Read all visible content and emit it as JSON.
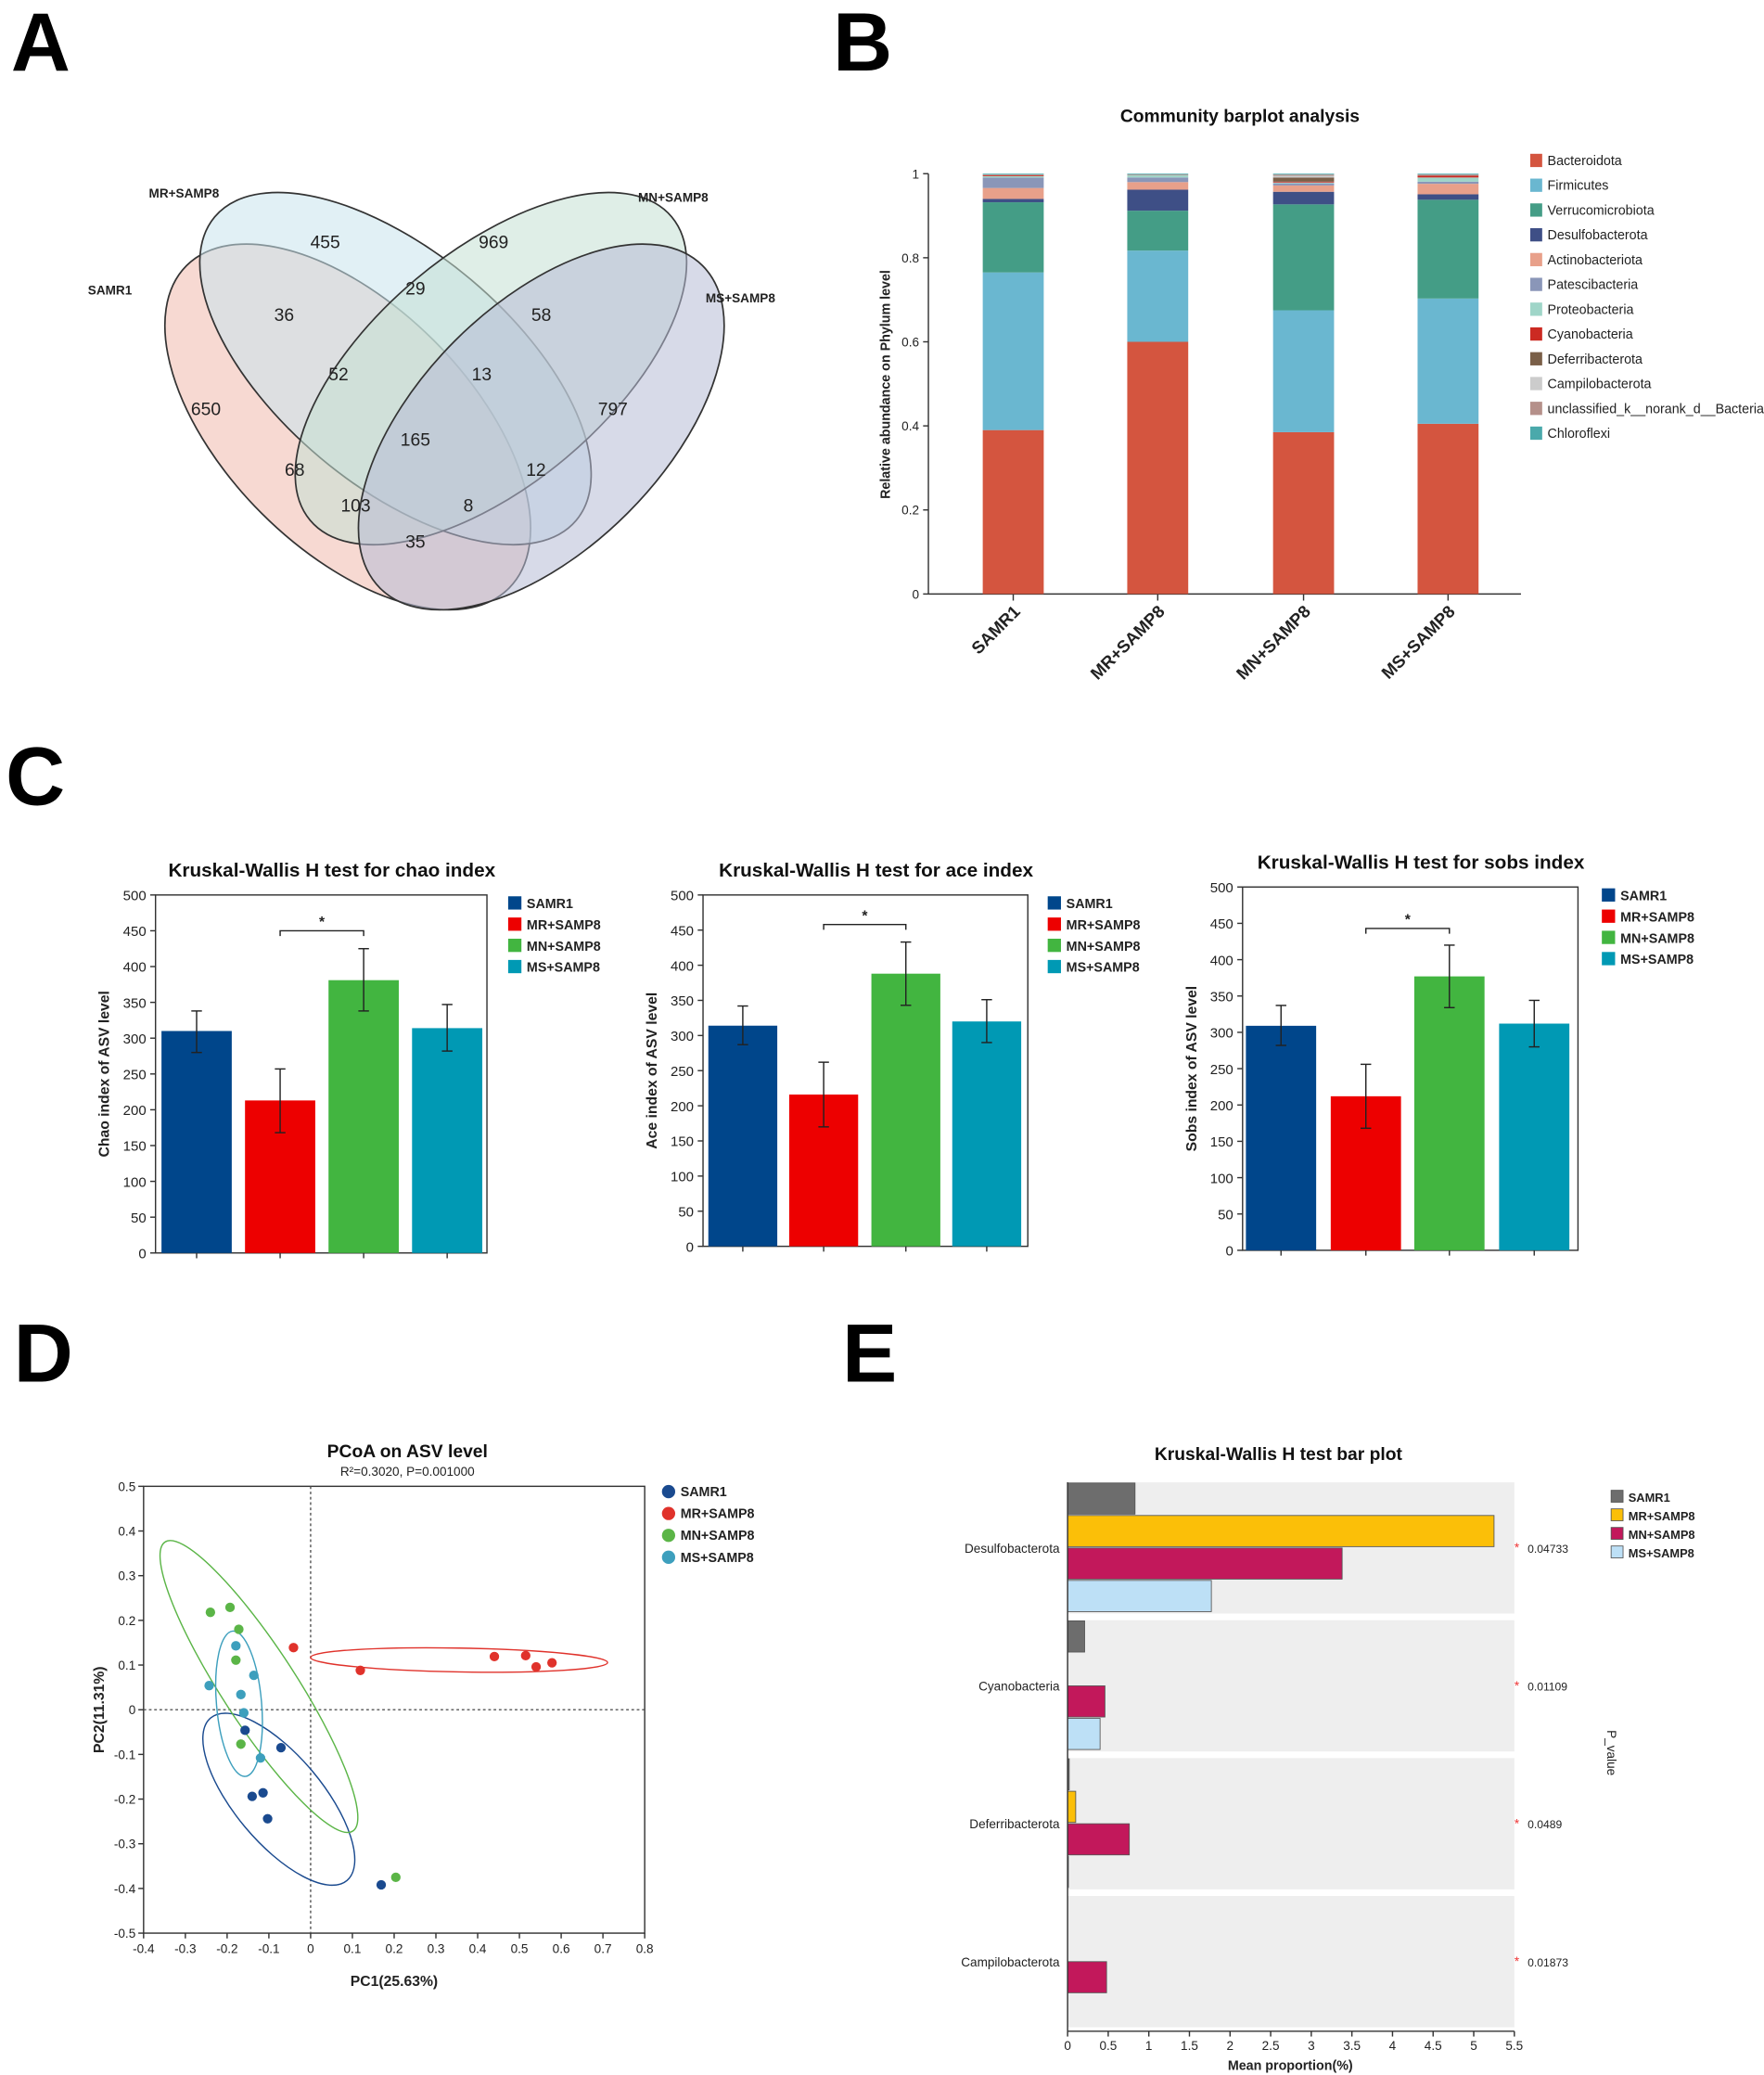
{
  "panel_labels": {
    "a": "A",
    "b": "B",
    "c": "C",
    "d": "D",
    "e": "E"
  },
  "chart_data": [
    {
      "type": "venn",
      "sets": [
        "SAMR1",
        "MR+SAMP8",
        "MN+SAMP8",
        "MS+SAMP8"
      ],
      "colors": [
        "#f0b9ad",
        "#c9e3ec",
        "#c4e0d3",
        "#b7bcd6"
      ],
      "regions": [
        {
          "sets": [
            "SAMR1"
          ],
          "value": "650"
        },
        {
          "sets": [
            "MR+SAMP8"
          ],
          "value": "455"
        },
        {
          "sets": [
            "MN+SAMP8"
          ],
          "value": "969"
        },
        {
          "sets": [
            "MS+SAMP8"
          ],
          "value": "797"
        },
        {
          "sets": [
            "SAMR1",
            "MR+SAMP8"
          ],
          "value": "36"
        },
        {
          "sets": [
            "MR+SAMP8",
            "MN+SAMP8"
          ],
          "value": "29"
        },
        {
          "sets": [
            "MN+SAMP8",
            "MS+SAMP8"
          ],
          "value": "58"
        },
        {
          "sets": [
            "SAMR1",
            "MR+SAMP8",
            "MN+SAMP8"
          ],
          "value": "52"
        },
        {
          "sets": [
            "MR+SAMP8",
            "MN+SAMP8",
            "MS+SAMP8"
          ],
          "value": "13"
        },
        {
          "sets": [
            "SAMR1",
            "MR+SAMP8",
            "MN+SAMP8",
            "MS+SAMP8"
          ],
          "value": "165"
        },
        {
          "sets": [
            "SAMR1",
            "MN+SAMP8"
          ],
          "value": "68"
        },
        {
          "sets": [
            "SAMR1",
            "MN+SAMP8",
            "MS+SAMP8"
          ],
          "value": "103"
        },
        {
          "sets": [
            "SAMR1",
            "MS+SAMP8"
          ],
          "value": "35"
        },
        {
          "sets": [
            "SAMR1",
            "MR+SAMP8",
            "MS+SAMP8"
          ],
          "value": "8"
        },
        {
          "sets": [
            "MR+SAMP8",
            "MS+SAMP8"
          ],
          "value": "12"
        }
      ]
    },
    {
      "type": "bar",
      "stacked": true,
      "title": "Community barplot analysis",
      "ylabel": "Relative abundance on Phylum level",
      "xlabel": "",
      "ylim": [
        0,
        1
      ],
      "yticks": [
        "0",
        "0.2",
        "0.4",
        "0.6",
        "0.8",
        "1"
      ],
      "categories": [
        "SAMR1",
        "MR+SAMP8",
        "MN+SAMP8",
        "MS+SAMP8"
      ],
      "legend_position": "right",
      "series": [
        {
          "name": "Bacteroidota",
          "color": "#d4553f",
          "values": [
            0.39,
            0.6,
            0.385,
            0.405
          ]
        },
        {
          "name": "Firmicutes",
          "color": "#6ab7d0",
          "values": [
            0.375,
            0.217,
            0.29,
            0.298
          ]
        },
        {
          "name": "Verrucomicrobiota",
          "color": "#449d86",
          "values": [
            0.167,
            0.095,
            0.252,
            0.235
          ]
        },
        {
          "name": "Desulfobacterota",
          "color": "#3e4f86",
          "values": [
            0.008,
            0.05,
            0.03,
            0.013
          ]
        },
        {
          "name": "Actinobacteriota",
          "color": "#e8a08a",
          "values": [
            0.026,
            0.018,
            0.015,
            0.025
          ]
        },
        {
          "name": "Patescibacteria",
          "color": "#8a96b8",
          "values": [
            0.025,
            0.011,
            0.005,
            0.005
          ]
        },
        {
          "name": "Proteobacteria",
          "color": "#9fd5c8",
          "values": [
            0.003,
            0.005,
            0.002,
            0.01
          ]
        },
        {
          "name": "Cyanobacteria",
          "color": "#cc2a22",
          "values": [
            0.002,
            0.0,
            0.002,
            0.004
          ]
        },
        {
          "name": "Deferribacterota",
          "color": "#7a5f48",
          "values": [
            0.0,
            0.0,
            0.01,
            0.0
          ]
        },
        {
          "name": "Campilobacterota",
          "color": "#cccccc",
          "values": [
            0.0,
            0.0,
            0.004,
            0.0
          ]
        },
        {
          "name": "unclassified_k__norank_d__Bacteria",
          "color": "#b5908a",
          "values": [
            0.002,
            0.002,
            0.003,
            0.003
          ]
        },
        {
          "name": "Chloroflexi",
          "color": "#4aa9ab",
          "values": [
            0.002,
            0.002,
            0.002,
            0.002
          ]
        }
      ]
    },
    {
      "type": "bar",
      "title": "Kruskal-Wallis H test for chao index",
      "ylabel": "Chao index of ASV level",
      "ylim": [
        0,
        500
      ],
      "yticks": [
        "0",
        "50",
        "100",
        "150",
        "200",
        "250",
        "300",
        "350",
        "400",
        "450",
        "500"
      ],
      "categories": [
        "SAMR1",
        "MR+SAMP8",
        "MN+SAMP8",
        "MS+SAMP8"
      ],
      "colors": [
        "#00468b",
        "#ed0000",
        "#42b540",
        "#0099b4"
      ],
      "values": [
        310,
        213,
        381,
        314
      ],
      "error_low": [
        280,
        168,
        338,
        282
      ],
      "error_high": [
        338,
        257,
        425,
        347
      ],
      "significance": {
        "between": [
          1,
          2
        ],
        "label": "*"
      },
      "legend_position": "right"
    },
    {
      "type": "bar",
      "title": "Kruskal-Wallis H test for ace index",
      "ylabel": "Ace index of ASV level",
      "ylim": [
        0,
        500
      ],
      "yticks": [
        "0",
        "50",
        "100",
        "150",
        "200",
        "250",
        "300",
        "350",
        "400",
        "450",
        "500"
      ],
      "categories": [
        "SAMR1",
        "MR+SAMP8",
        "MN+SAMP8",
        "MS+SAMP8"
      ],
      "colors": [
        "#00468b",
        "#ed0000",
        "#42b540",
        "#0099b4"
      ],
      "values": [
        314,
        216,
        388,
        320
      ],
      "error_low": [
        287,
        170,
        343,
        290
      ],
      "error_high": [
        342,
        262,
        433,
        351
      ],
      "significance": {
        "between": [
          1,
          2
        ],
        "label": "*"
      },
      "legend_position": "right"
    },
    {
      "type": "bar",
      "title": "Kruskal-Wallis H test for sobs index",
      "ylabel": "Sobs index of ASV level",
      "ylim": [
        0,
        500
      ],
      "yticks": [
        "0",
        "50",
        "100",
        "150",
        "200",
        "250",
        "300",
        "350",
        "400",
        "450",
        "500"
      ],
      "categories": [
        "SAMR1",
        "MR+SAMP8",
        "MN+SAMP8",
        "MS+SAMP8"
      ],
      "colors": [
        "#00468b",
        "#ed0000",
        "#42b540",
        "#0099b4"
      ],
      "values": [
        309,
        212,
        377,
        312
      ],
      "error_low": [
        282,
        168,
        334,
        280
      ],
      "error_high": [
        337,
        256,
        420,
        344
      ],
      "significance": {
        "between": [
          1,
          2
        ],
        "label": "*"
      },
      "legend_position": "right"
    },
    {
      "type": "scatter",
      "title": "PCoA on ASV level",
      "subtitle": "R²=0.3020, P=0.001000",
      "xlabel": "PC1(25.63%)",
      "ylabel": "PC2(11.31%)",
      "xlim": [
        -0.4,
        0.8
      ],
      "ylim": [
        -0.5,
        0.5
      ],
      "xticks": [
        "-0.4",
        "-0.3",
        "-0.2",
        "-0.1",
        "0",
        "0.1",
        "0.2",
        "0.3",
        "0.4",
        "0.5",
        "0.6",
        "0.7",
        "0.8"
      ],
      "yticks": [
        "0.5",
        "0.4",
        "0.3",
        "0.2",
        "0.1",
        "0",
        "-0.1",
        "-0.2",
        "-0.3",
        "-0.4",
        "-0.5"
      ],
      "legend_position": "right",
      "series": [
        {
          "name": "SAMR1",
          "color": "#1a4a8f",
          "x": [
            -0.157,
            -0.071,
            -0.14,
            -0.114,
            -0.103,
            0.169
          ],
          "y": [
            -0.046,
            -0.085,
            -0.194,
            -0.186,
            -0.244,
            -0.392
          ]
        },
        {
          "name": "MR+SAMP8",
          "color": "#e0322b",
          "x": [
            -0.041,
            0.119,
            0.44,
            0.515,
            0.54,
            0.578
          ],
          "y": [
            0.139,
            0.088,
            0.119,
            0.121,
            0.096,
            0.105
          ]
        },
        {
          "name": "MN+SAMP8",
          "color": "#5bb547",
          "x": [
            -0.24,
            -0.193,
            -0.172,
            -0.179,
            -0.167,
            0.204
          ],
          "y": [
            0.218,
            0.229,
            0.18,
            0.111,
            -0.077,
            -0.375
          ]
        },
        {
          "name": "MS+SAMP8",
          "color": "#3d9fbd",
          "x": [
            -0.179,
            -0.136,
            -0.243,
            -0.167,
            -0.16,
            -0.12
          ],
          "y": [
            0.143,
            0.077,
            0.054,
            0.034,
            -0.007,
            -0.108
          ]
        }
      ]
    },
    {
      "type": "bar",
      "orientation": "horizontal",
      "title": "Kruskal-Wallis H test bar plot",
      "xlabel": "Mean proportion(%)",
      "p_label": "P_value",
      "xlim": [
        0,
        5.5
      ],
      "xticks": [
        "0",
        "0.5",
        "1",
        "1.5",
        "2",
        "2.5",
        "3",
        "3.5",
        "4",
        "4.5",
        "5",
        "5.5"
      ],
      "categories": [
        "Desulfobacterota",
        "Cyanobacteria",
        "Deferribacterota",
        "Campilobacterota"
      ],
      "p_values": [
        "0.04733",
        "0.01109",
        "0.0489",
        "0.01873"
      ],
      "p_marks": [
        "*",
        "*",
        "*",
        "*"
      ],
      "legend_position": "top-right",
      "series": [
        {
          "name": "SAMR1",
          "color": "#6d6d6d",
          "values": [
            0.83,
            0.21,
            0.02,
            0.0
          ]
        },
        {
          "name": "MR+SAMP8",
          "color": "#fbbf08",
          "values": [
            5.25,
            0.0,
            0.1,
            0.0
          ]
        },
        {
          "name": "MN+SAMP8",
          "color": "#c2185b",
          "values": [
            3.38,
            0.46,
            0.76,
            0.48
          ]
        },
        {
          "name": "MS+SAMP8",
          "color": "#bde0f6",
          "values": [
            1.77,
            0.4,
            0.01,
            0.0
          ]
        }
      ]
    }
  ]
}
